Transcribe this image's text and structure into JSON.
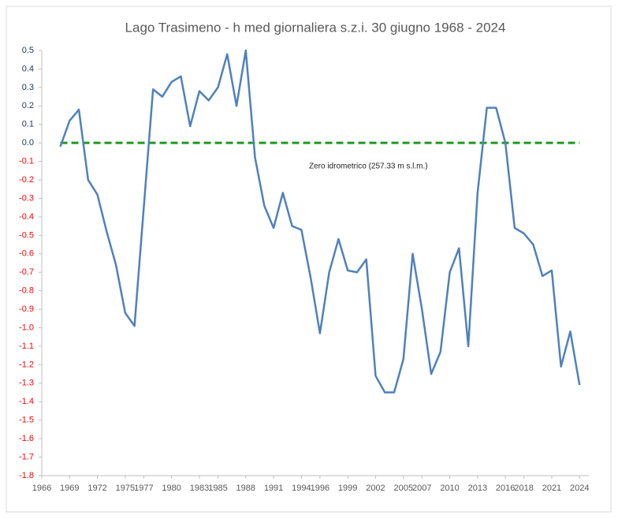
{
  "chart_data": {
    "type": "line",
    "title": "Lago Trasimeno - h med giornaliera s.z.i. 30 giugno 1968 - 2024",
    "annotation": "Zero idrometrico (257.33 m s.l.m.)",
    "x": [
      1968,
      1969,
      1970,
      1971,
      1972,
      1973,
      1974,
      1975,
      1976,
      1977,
      1978,
      1979,
      1980,
      1981,
      1982,
      1983,
      1984,
      1985,
      1986,
      1987,
      1988,
      1989,
      1990,
      1991,
      1992,
      1993,
      1994,
      1995,
      1996,
      1997,
      1998,
      1999,
      2000,
      2001,
      2002,
      2003,
      2004,
      2005,
      2006,
      2007,
      2008,
      2009,
      2010,
      2011,
      2012,
      2013,
      2014,
      2015,
      2016,
      2017,
      2018,
      2019,
      2020,
      2021,
      2022,
      2023,
      2024
    ],
    "series": [
      {
        "color": "#4f81bd",
        "values": [
          -0.02,
          0.12,
          0.18,
          -0.2,
          -0.28,
          -0.48,
          -0.66,
          -0.92,
          -0.99,
          -0.35,
          0.29,
          0.25,
          0.33,
          0.36,
          0.09,
          0.28,
          0.23,
          0.3,
          0.48,
          0.2,
          0.5,
          -0.08,
          -0.34,
          -0.46,
          -0.27,
          -0.45,
          -0.47,
          -0.73,
          -1.03,
          -0.7,
          -0.52,
          -0.69,
          -0.7,
          -0.63,
          -1.26,
          -1.35,
          -1.35,
          -1.17,
          -0.6,
          -0.9,
          -1.25,
          -1.13,
          -0.7,
          -0.57,
          -1.1,
          -0.27,
          0.19,
          0.19,
          0.0,
          -0.46,
          -0.49,
          -0.55,
          -0.72,
          -0.69,
          -1.21,
          -1.02,
          -1.31
        ]
      }
    ],
    "reference_line": {
      "value": 0,
      "color": "#1e9a1e"
    },
    "xlim": [
      1966,
      2025
    ],
    "xticks": [
      1966,
      1969,
      1972,
      1975,
      1977,
      1980,
      1983,
      1985,
      1988,
      1991,
      1994,
      1996,
      1999,
      2002,
      2005,
      2007,
      2010,
      2013,
      2016,
      2018,
      2021,
      2024
    ],
    "ylim": [
      -1.8,
      0.5
    ],
    "yticks": [
      0.5,
      0.4,
      0.3,
      0.2,
      0.1,
      {
        "value": 0,
        "label": "0.0"
      },
      -0.1,
      -0.2,
      -0.3,
      -0.4,
      -0.5,
      -0.6,
      -0.7,
      -0.8,
      -0.9,
      {
        "value": -1,
        "label": "-1.0"
      },
      -1.1,
      -1.2,
      -1.3,
      -1.4,
      -1.5,
      -1.6,
      -1.7,
      -1.8
    ],
    "positive_tick_color": "#1f3864",
    "negative_tick_color": "#ff0000",
    "grid": false
  }
}
